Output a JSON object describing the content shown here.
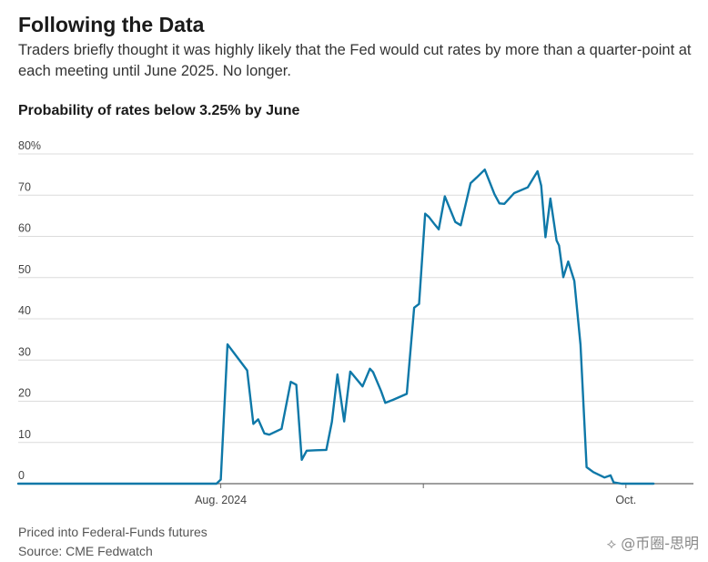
{
  "header": {
    "title": "Following the Data",
    "subtitle": "Traders briefly thought it was highly likely that the Fed would cut rates by more than a quarter-point at each meeting until June 2025. No longer."
  },
  "footer": {
    "note": "Priced into Federal-Funds futures",
    "source": "Source: CME Fedwatch"
  },
  "watermark": "⟡ @币圈-思明",
  "chart_data": {
    "type": "line",
    "title": "Probability of rates below 3.25% by June",
    "xlabel": "",
    "ylabel": "",
    "ylim": [
      0,
      80
    ],
    "yticks": [
      0,
      10,
      20,
      30,
      40,
      50,
      60,
      70,
      80
    ],
    "ytick_labels": [
      "0",
      "10",
      "20",
      "30",
      "40",
      "50",
      "60",
      "70",
      "80%"
    ],
    "xlim": [
      0,
      110
    ],
    "xticks": [
      {
        "x": 33,
        "label": "Aug. 2024"
      },
      {
        "x": 66,
        "label": ""
      },
      {
        "x": 99,
        "label": "Oct."
      }
    ],
    "grid": true,
    "legend": "none",
    "color": "#0e78a8",
    "series": [
      {
        "x": [
          0,
          25,
          32.3,
          33,
          34.1,
          37.3,
          38.3,
          39.1,
          40.1,
          40.9,
          42.9,
          44.4,
          45.3,
          46.2,
          47.0,
          48.5,
          50.2,
          51.1,
          52.0,
          53.1,
          54.1,
          56.1,
          57.3,
          57.8,
          59.1,
          59.8,
          61.0,
          63.3,
          64.5,
          65.3,
          66.3,
          66.9,
          67.9,
          68.5,
          69.5,
          71.2,
          72.1,
          73.7,
          74.7,
          76.0,
          77.6,
          78.4,
          79.2,
          80.8,
          83.0,
          84.6,
          85.2,
          85.9,
          86.7,
          87.7,
          88.1,
          88.8,
          89.6,
          90.6,
          91.6,
          92.6,
          93.7,
          95.5,
          96.5,
          97.0,
          98.3,
          99.6,
          100.6,
          101.8,
          102.9,
          103.5
        ],
        "y": [
          0,
          0,
          0,
          1,
          33.8,
          27.5,
          14.5,
          15.6,
          12.2,
          11.9,
          13.3,
          24.7,
          24,
          5.8,
          8,
          8.1,
          8.2,
          15,
          26.5,
          15.1,
          27.2,
          23.6,
          27.9,
          27.1,
          22.5,
          19.6,
          20.3,
          21.8,
          42.7,
          43.6,
          65.5,
          64.7,
          62.8,
          61.7,
          69.7,
          63.5,
          62.7,
          72.9,
          74.3,
          76.2,
          70.2,
          68,
          67.9,
          70.5,
          71.9,
          75.8,
          72.3,
          59.8,
          69.2,
          59,
          57.8,
          50.1,
          53.9,
          49.2,
          33.7,
          4,
          2.8,
          1.5,
          2,
          0.3,
          0,
          0,
          0,
          0,
          0,
          0
        ]
      }
    ]
  }
}
